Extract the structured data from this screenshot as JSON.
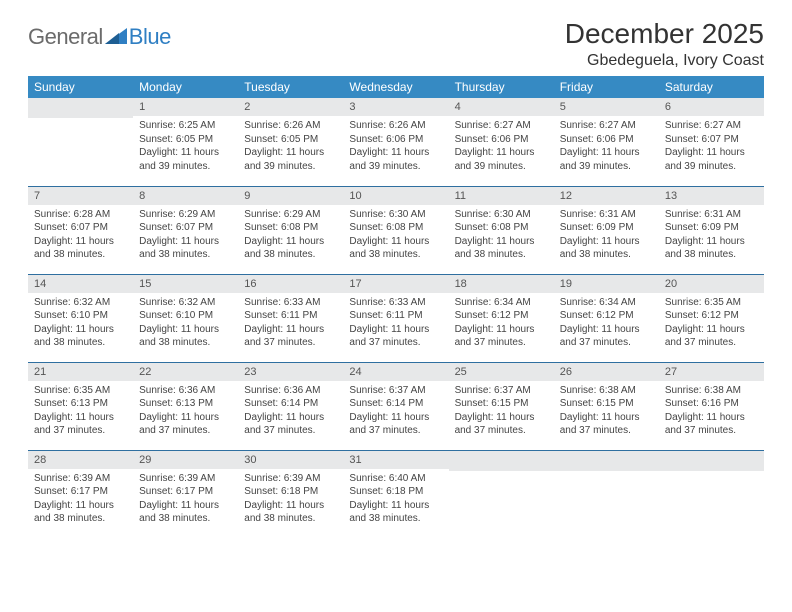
{
  "brand": {
    "general": "General",
    "blue": "Blue"
  },
  "title": "December 2025",
  "location": "Gbedeguela, Ivory Coast",
  "colors": {
    "header_bg": "#368ac3",
    "header_text": "#ffffff",
    "daynum_bg": "#e7e8e9",
    "rule": "#2f6fa0",
    "text": "#333333",
    "brand_gray": "#6b6b6b",
    "brand_blue": "#2f7fc3"
  },
  "day_headers": [
    "Sunday",
    "Monday",
    "Tuesday",
    "Wednesday",
    "Thursday",
    "Friday",
    "Saturday"
  ],
  "weeks": [
    [
      {
        "n": "",
        "sr": "",
        "ss": "",
        "dl": ""
      },
      {
        "n": "1",
        "sr": "Sunrise: 6:25 AM",
        "ss": "Sunset: 6:05 PM",
        "dl": "Daylight: 11 hours and 39 minutes."
      },
      {
        "n": "2",
        "sr": "Sunrise: 6:26 AM",
        "ss": "Sunset: 6:05 PM",
        "dl": "Daylight: 11 hours and 39 minutes."
      },
      {
        "n": "3",
        "sr": "Sunrise: 6:26 AM",
        "ss": "Sunset: 6:06 PM",
        "dl": "Daylight: 11 hours and 39 minutes."
      },
      {
        "n": "4",
        "sr": "Sunrise: 6:27 AM",
        "ss": "Sunset: 6:06 PM",
        "dl": "Daylight: 11 hours and 39 minutes."
      },
      {
        "n": "5",
        "sr": "Sunrise: 6:27 AM",
        "ss": "Sunset: 6:06 PM",
        "dl": "Daylight: 11 hours and 39 minutes."
      },
      {
        "n": "6",
        "sr": "Sunrise: 6:27 AM",
        "ss": "Sunset: 6:07 PM",
        "dl": "Daylight: 11 hours and 39 minutes."
      }
    ],
    [
      {
        "n": "7",
        "sr": "Sunrise: 6:28 AM",
        "ss": "Sunset: 6:07 PM",
        "dl": "Daylight: 11 hours and 38 minutes."
      },
      {
        "n": "8",
        "sr": "Sunrise: 6:29 AM",
        "ss": "Sunset: 6:07 PM",
        "dl": "Daylight: 11 hours and 38 minutes."
      },
      {
        "n": "9",
        "sr": "Sunrise: 6:29 AM",
        "ss": "Sunset: 6:08 PM",
        "dl": "Daylight: 11 hours and 38 minutes."
      },
      {
        "n": "10",
        "sr": "Sunrise: 6:30 AM",
        "ss": "Sunset: 6:08 PM",
        "dl": "Daylight: 11 hours and 38 minutes."
      },
      {
        "n": "11",
        "sr": "Sunrise: 6:30 AM",
        "ss": "Sunset: 6:08 PM",
        "dl": "Daylight: 11 hours and 38 minutes."
      },
      {
        "n": "12",
        "sr": "Sunrise: 6:31 AM",
        "ss": "Sunset: 6:09 PM",
        "dl": "Daylight: 11 hours and 38 minutes."
      },
      {
        "n": "13",
        "sr": "Sunrise: 6:31 AM",
        "ss": "Sunset: 6:09 PM",
        "dl": "Daylight: 11 hours and 38 minutes."
      }
    ],
    [
      {
        "n": "14",
        "sr": "Sunrise: 6:32 AM",
        "ss": "Sunset: 6:10 PM",
        "dl": "Daylight: 11 hours and 38 minutes."
      },
      {
        "n": "15",
        "sr": "Sunrise: 6:32 AM",
        "ss": "Sunset: 6:10 PM",
        "dl": "Daylight: 11 hours and 38 minutes."
      },
      {
        "n": "16",
        "sr": "Sunrise: 6:33 AM",
        "ss": "Sunset: 6:11 PM",
        "dl": "Daylight: 11 hours and 37 minutes."
      },
      {
        "n": "17",
        "sr": "Sunrise: 6:33 AM",
        "ss": "Sunset: 6:11 PM",
        "dl": "Daylight: 11 hours and 37 minutes."
      },
      {
        "n": "18",
        "sr": "Sunrise: 6:34 AM",
        "ss": "Sunset: 6:12 PM",
        "dl": "Daylight: 11 hours and 37 minutes."
      },
      {
        "n": "19",
        "sr": "Sunrise: 6:34 AM",
        "ss": "Sunset: 6:12 PM",
        "dl": "Daylight: 11 hours and 37 minutes."
      },
      {
        "n": "20",
        "sr": "Sunrise: 6:35 AM",
        "ss": "Sunset: 6:12 PM",
        "dl": "Daylight: 11 hours and 37 minutes."
      }
    ],
    [
      {
        "n": "21",
        "sr": "Sunrise: 6:35 AM",
        "ss": "Sunset: 6:13 PM",
        "dl": "Daylight: 11 hours and 37 minutes."
      },
      {
        "n": "22",
        "sr": "Sunrise: 6:36 AM",
        "ss": "Sunset: 6:13 PM",
        "dl": "Daylight: 11 hours and 37 minutes."
      },
      {
        "n": "23",
        "sr": "Sunrise: 6:36 AM",
        "ss": "Sunset: 6:14 PM",
        "dl": "Daylight: 11 hours and 37 minutes."
      },
      {
        "n": "24",
        "sr": "Sunrise: 6:37 AM",
        "ss": "Sunset: 6:14 PM",
        "dl": "Daylight: 11 hours and 37 minutes."
      },
      {
        "n": "25",
        "sr": "Sunrise: 6:37 AM",
        "ss": "Sunset: 6:15 PM",
        "dl": "Daylight: 11 hours and 37 minutes."
      },
      {
        "n": "26",
        "sr": "Sunrise: 6:38 AM",
        "ss": "Sunset: 6:15 PM",
        "dl": "Daylight: 11 hours and 37 minutes."
      },
      {
        "n": "27",
        "sr": "Sunrise: 6:38 AM",
        "ss": "Sunset: 6:16 PM",
        "dl": "Daylight: 11 hours and 37 minutes."
      }
    ],
    [
      {
        "n": "28",
        "sr": "Sunrise: 6:39 AM",
        "ss": "Sunset: 6:17 PM",
        "dl": "Daylight: 11 hours and 38 minutes."
      },
      {
        "n": "29",
        "sr": "Sunrise: 6:39 AM",
        "ss": "Sunset: 6:17 PM",
        "dl": "Daylight: 11 hours and 38 minutes."
      },
      {
        "n": "30",
        "sr": "Sunrise: 6:39 AM",
        "ss": "Sunset: 6:18 PM",
        "dl": "Daylight: 11 hours and 38 minutes."
      },
      {
        "n": "31",
        "sr": "Sunrise: 6:40 AM",
        "ss": "Sunset: 6:18 PM",
        "dl": "Daylight: 11 hours and 38 minutes."
      },
      {
        "n": "",
        "sr": "",
        "ss": "",
        "dl": ""
      },
      {
        "n": "",
        "sr": "",
        "ss": "",
        "dl": ""
      },
      {
        "n": "",
        "sr": "",
        "ss": "",
        "dl": ""
      }
    ]
  ]
}
